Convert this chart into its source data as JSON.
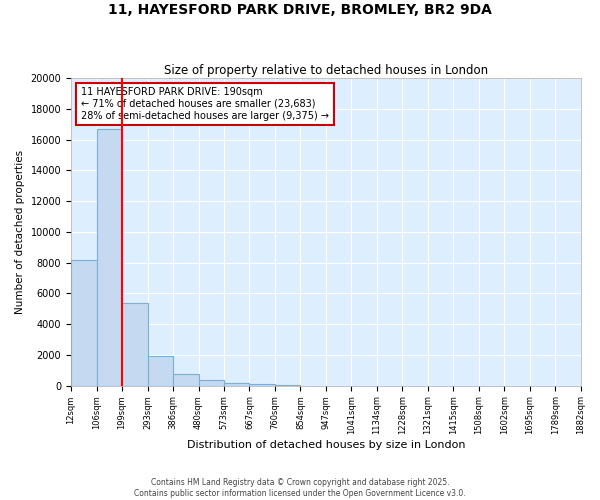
{
  "title1": "11, HAYESFORD PARK DRIVE, BROMLEY, BR2 9DA",
  "title2": "Size of property relative to detached houses in London",
  "xlabel": "Distribution of detached houses by size in London",
  "ylabel": "Number of detached properties",
  "bar_color": "#c5d9f0",
  "bar_edge_color": "#7ab0d8",
  "background_color": "#ddeeff",
  "grid_color": "#ffffff",
  "bin_edges": [
    12,
    106,
    199,
    293,
    386,
    480,
    573,
    667,
    760,
    854,
    947,
    1041,
    1134,
    1228,
    1321,
    1415,
    1508,
    1602,
    1695,
    1789,
    1882
  ],
  "bar_heights": [
    8200,
    16700,
    5400,
    1900,
    750,
    350,
    200,
    100,
    50,
    0,
    0,
    0,
    0,
    0,
    0,
    0,
    0,
    0,
    0,
    0
  ],
  "red_line_x": 199,
  "ylim": [
    0,
    20000
  ],
  "yticks": [
    0,
    2000,
    4000,
    6000,
    8000,
    10000,
    12000,
    14000,
    16000,
    18000,
    20000
  ],
  "annotation_title": "11 HAYESFORD PARK DRIVE: 190sqm",
  "annotation_line1": "← 71% of detached houses are smaller (23,683)",
  "annotation_line2": "28% of semi-detached houses are larger (9,375) →",
  "annotation_box_color": "#ffffff",
  "annotation_box_edge": "#cc0000",
  "footer1": "Contains HM Land Registry data © Crown copyright and database right 2025.",
  "footer2": "Contains public sector information licensed under the Open Government Licence v3.0."
}
